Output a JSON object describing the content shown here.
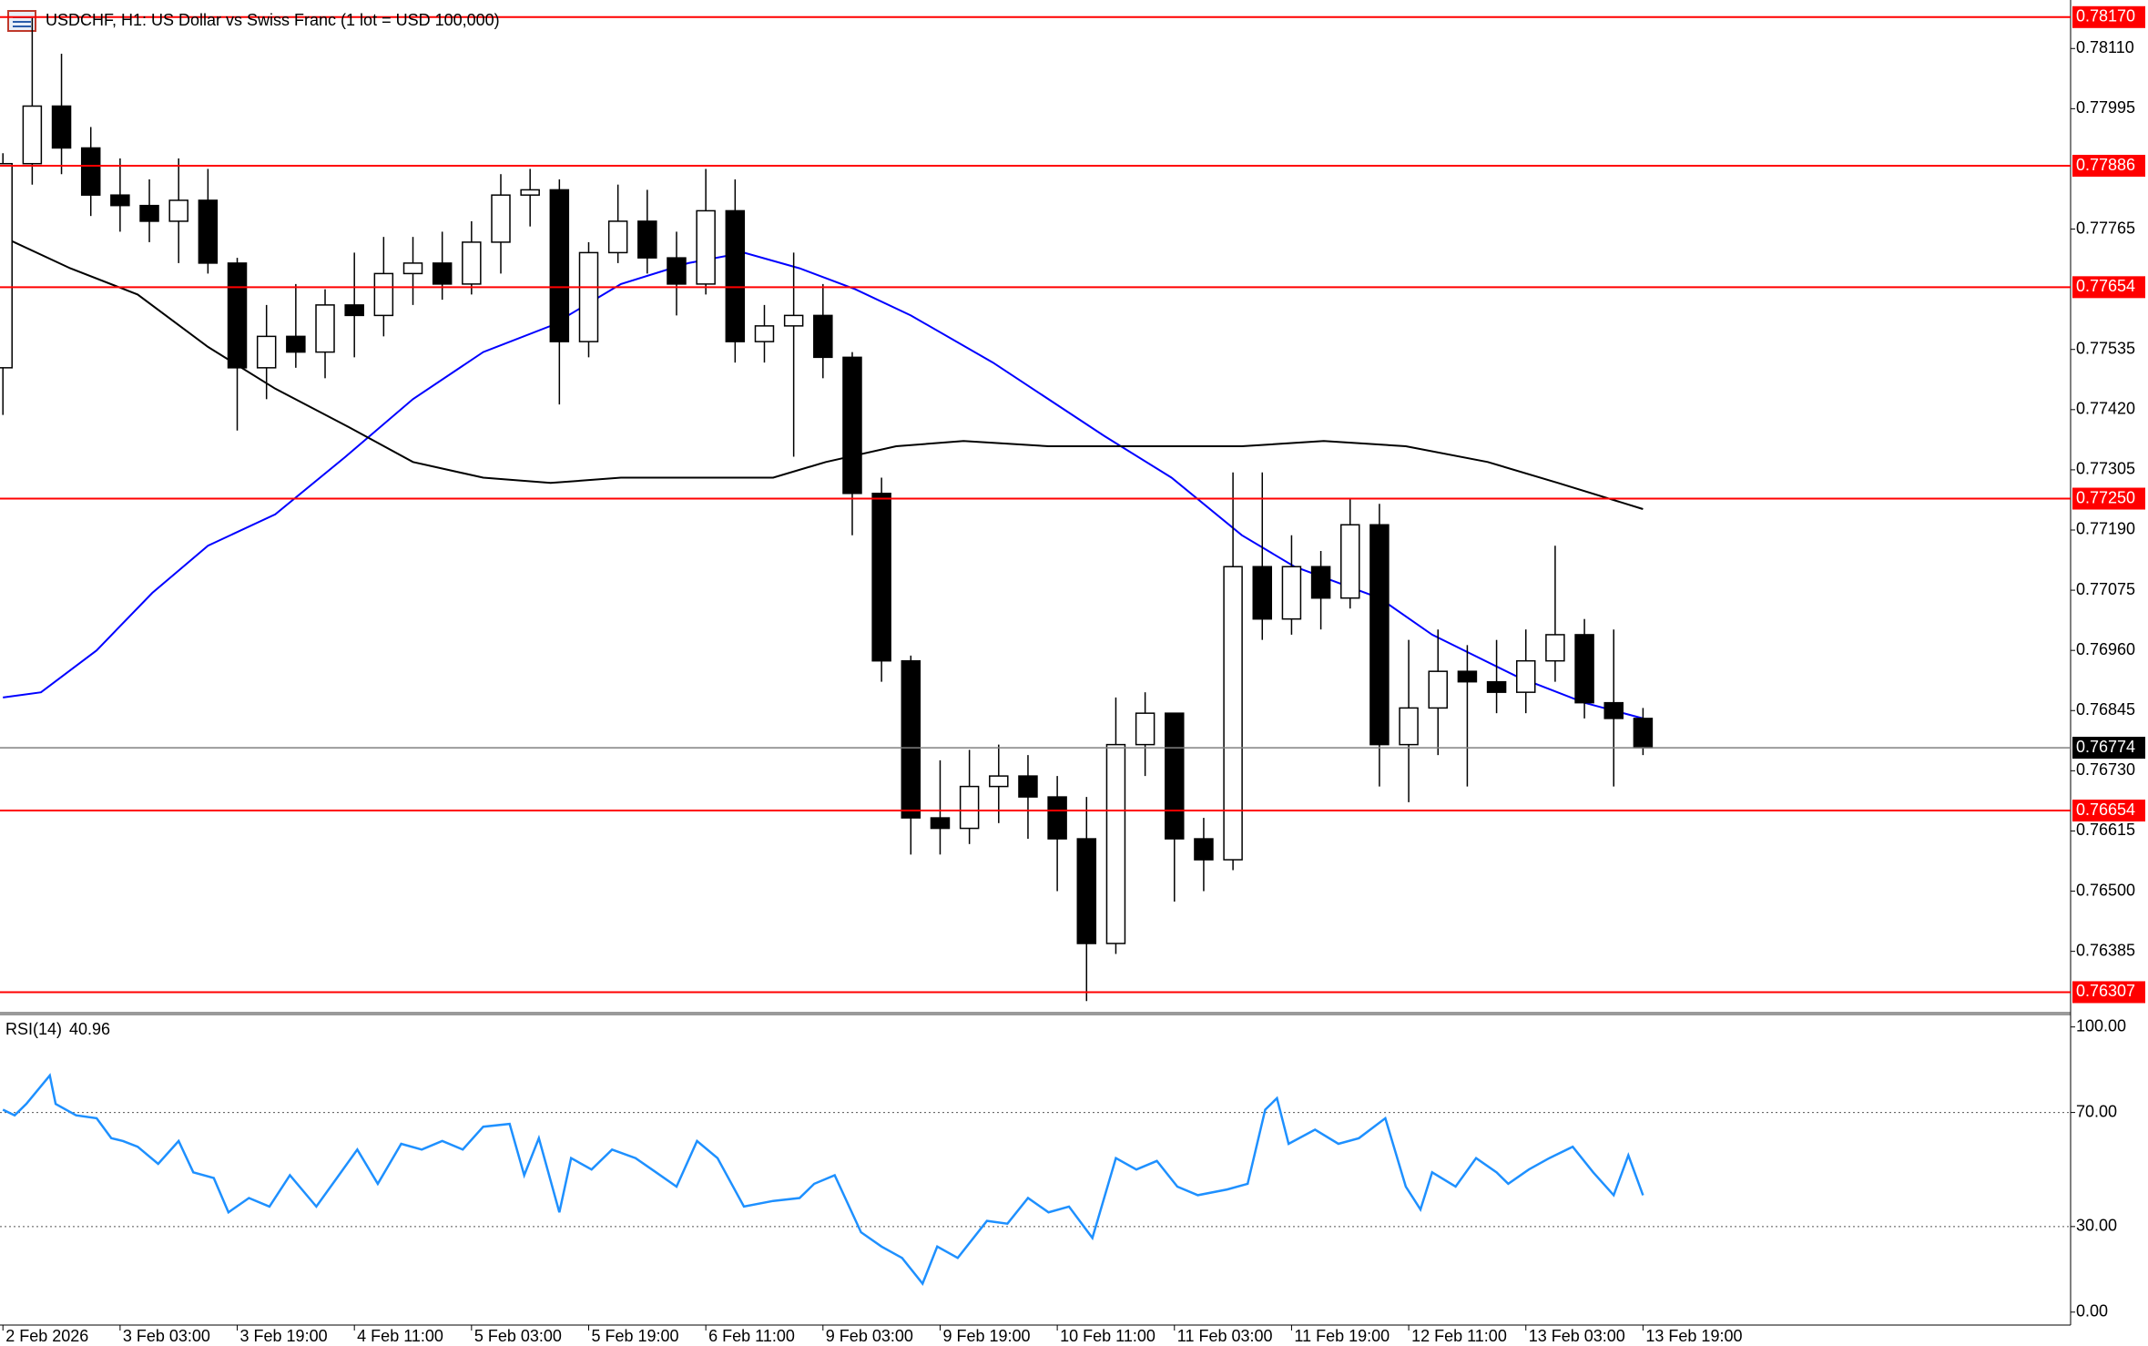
{
  "chart_data": [
    {
      "type": "candlestick",
      "title": "USDCHF, H1:  US Dollar vs Swiss Franc (1 lot = USD 100,000)",
      "candles": {
        "open": [
          0.775,
          0.7789,
          0.78,
          0.7792,
          0.7783,
          0.7781,
          0.7778,
          0.7782,
          0.777,
          0.775,
          0.7756,
          0.7753,
          0.7762,
          0.776,
          0.7768,
          0.777,
          0.7766,
          0.7774,
          0.7783,
          0.7784,
          0.7755,
          0.7772,
          0.7778,
          0.7771,
          0.7766,
          0.778,
          0.7755,
          0.7758,
          0.776,
          0.7752,
          0.7726,
          0.7694,
          0.7664,
          0.7662,
          0.767,
          0.7672,
          0.7668,
          0.766,
          0.764,
          0.7678,
          0.7684,
          0.766,
          0.7656,
          0.7712,
          0.7702,
          0.7712,
          0.7706,
          0.772,
          0.7678,
          0.7685,
          0.7692,
          0.769,
          0.7688,
          0.7694,
          0.7699,
          0.7686,
          0.7683
        ],
        "high": [
          0.7791,
          0.7817,
          0.781,
          0.7796,
          0.779,
          0.7786,
          0.779,
          0.7788,
          0.7771,
          0.7762,
          0.7766,
          0.7765,
          0.7772,
          0.7775,
          0.7775,
          0.7776,
          0.7778,
          0.7787,
          0.7788,
          0.7786,
          0.7774,
          0.7785,
          0.7784,
          0.7776,
          0.7788,
          0.7786,
          0.7762,
          0.7772,
          0.7766,
          0.7753,
          0.7729,
          0.7695,
          0.7675,
          0.7677,
          0.7678,
          0.7676,
          0.7672,
          0.7668,
          0.7687,
          0.7688,
          0.7684,
          0.7664,
          0.773,
          0.773,
          0.7718,
          0.7715,
          0.7725,
          0.7724,
          0.7698,
          0.77,
          0.7697,
          0.7698,
          0.77,
          0.7716,
          0.7702,
          0.77,
          0.7685
        ],
        "low": [
          0.7741,
          0.7785,
          0.7787,
          0.7779,
          0.7776,
          0.7774,
          0.777,
          0.7768,
          0.7738,
          0.7744,
          0.775,
          0.7748,
          0.7752,
          0.7756,
          0.7762,
          0.7763,
          0.7764,
          0.7768,
          0.7777,
          0.7743,
          0.7752,
          0.777,
          0.7768,
          0.776,
          0.7764,
          0.7751,
          0.7751,
          0.7733,
          0.7748,
          0.7718,
          0.769,
          0.7657,
          0.7657,
          0.7659,
          0.7663,
          0.766,
          0.765,
          0.7629,
          0.7638,
          0.7672,
          0.7648,
          0.765,
          0.7654,
          0.7698,
          0.7699,
          0.77,
          0.7704,
          0.767,
          0.7667,
          0.7676,
          0.767,
          0.7684,
          0.7684,
          0.769,
          0.7683,
          0.767,
          0.7676
        ],
        "close": [
          0.7789,
          0.78,
          0.7792,
          0.7783,
          0.7781,
          0.7778,
          0.7782,
          0.777,
          0.775,
          0.7756,
          0.7753,
          0.7762,
          0.776,
          0.7768,
          0.777,
          0.7766,
          0.7774,
          0.7783,
          0.7784,
          0.7755,
          0.7772,
          0.7778,
          0.7771,
          0.7766,
          0.778,
          0.7755,
          0.7758,
          0.776,
          0.7752,
          0.7726,
          0.7694,
          0.7664,
          0.7662,
          0.767,
          0.7672,
          0.7668,
          0.766,
          0.764,
          0.7678,
          0.7684,
          0.766,
          0.7656,
          0.7712,
          0.7702,
          0.7712,
          0.7706,
          0.772,
          0.7678,
          0.7685,
          0.7692,
          0.769,
          0.7688,
          0.7694,
          0.7699,
          0.7686,
          0.7683,
          0.76774
        ]
      },
      "colors": {
        "up": "#ffffff",
        "down": "#000000",
        "outline": "#000000"
      },
      "moving_averages": [
        {
          "color": "#0000ff",
          "x": [
            0,
            1.3,
            3.2,
            5.1,
            7.0,
            9.3,
            11.7,
            14.0,
            16.4,
            18.7,
            21.1,
            23.4,
            25.3,
            27.2,
            29.1,
            31.0,
            33.8,
            37.6,
            39.9,
            42.3,
            44.1,
            47.0,
            48.8,
            51.7,
            54.0,
            56.0
          ],
          "values": [
            0.7687,
            0.7688,
            0.7696,
            0.7707,
            0.7716,
            0.7722,
            0.7733,
            0.7744,
            0.7753,
            0.7758,
            0.7766,
            0.777,
            0.7772,
            0.7769,
            0.7765,
            0.776,
            0.7751,
            0.7737,
            0.7729,
            0.7718,
            0.7712,
            0.7706,
            0.7699,
            0.7691,
            0.7686,
            0.7683
          ]
        },
        {
          "color": "#000000",
          "x": [
            0,
            2.3,
            4.6,
            7.0,
            9.3,
            11.7,
            14.0,
            16.4,
            18.7,
            21.1,
            23.4,
            26.3,
            28.1,
            30.5,
            32.8,
            35.7,
            39.9,
            42.3,
            45.1,
            47.9,
            50.7,
            53.1,
            56.0
          ],
          "values": [
            0.7775,
            0.7769,
            0.7764,
            0.7754,
            0.7746,
            0.7739,
            0.7732,
            0.7729,
            0.7728,
            0.7729,
            0.7729,
            0.7729,
            0.7732,
            0.7735,
            0.7736,
            0.7735,
            0.7735,
            0.7735,
            0.7736,
            0.7735,
            0.7732,
            0.7728,
            0.7723
          ]
        }
      ],
      "levels": [
        {
          "value": 0.7817,
          "label": "0.78170"
        },
        0.77886,
        0.77654,
        {
          "value": 0.7725,
          "label": "0.77250"
        },
        0.76654,
        0.76307
      ],
      "level_color": "#ff0000",
      "current_price": 0.76774,
      "current_color": "#808080",
      "xlim": [
        -0.1,
        70.6
      ],
      "ylim": [
        0.76273,
        0.78194
      ],
      "yticks": [
        {
          "value": 0.7811,
          "label": "0.78110"
        },
        0.77995,
        0.77765,
        0.77535,
        {
          "value": 0.7742,
          "label": "0.77420"
        },
        0.77305,
        {
          "value": 0.7719,
          "label": "0.77190"
        },
        0.77075,
        {
          "value": 0.7696,
          "label": "0.76960"
        },
        0.76845,
        {
          "value": 0.7673,
          "label": "0.76730"
        },
        0.76615,
        {
          "value": 0.765,
          "label": "0.76500"
        },
        0.76385
      ]
    },
    {
      "type": "line",
      "name": "RSI(14)",
      "current": 40.96,
      "color": "#1e90ff",
      "x": [
        0,
        0.4,
        0.8,
        1.6,
        1.8,
        2.5,
        3.2,
        3.7,
        4.1,
        4.6,
        5.3,
        6.0,
        6.5,
        7.2,
        7.7,
        8.4,
        9.1,
        9.8,
        10.7,
        11.4,
        12.1,
        12.8,
        13.6,
        14.3,
        15.0,
        15.7,
        16.4,
        17.3,
        17.8,
        18.3,
        19.0,
        19.4,
        20.1,
        20.8,
        21.6,
        22.3,
        23.0,
        23.7,
        24.4,
        25.3,
        26.3,
        27.2,
        27.7,
        28.4,
        29.3,
        30.0,
        30.7,
        31.4,
        31.9,
        32.6,
        33.6,
        34.3,
        35.0,
        35.7,
        36.4,
        37.2,
        38.0,
        38.7,
        39.4,
        40.1,
        40.8,
        41.8,
        42.5,
        43.1,
        43.5,
        43.9,
        44.8,
        45.6,
        46.3,
        47.2,
        47.9,
        48.4,
        48.8,
        49.6,
        50.3,
        51.0,
        51.4,
        52.1,
        52.8,
        53.6,
        54.3,
        55.0,
        55.5,
        56.0
      ],
      "values": [
        71,
        69,
        73,
        83,
        73,
        69,
        68,
        61,
        60,
        58,
        52,
        60,
        49,
        47,
        35,
        40,
        37,
        48,
        37,
        47,
        57,
        45,
        59,
        57,
        60,
        57,
        65,
        66,
        48,
        61,
        35,
        54,
        50,
        57,
        54,
        49,
        44,
        60,
        54,
        37,
        39,
        40,
        45,
        48,
        28,
        23,
        19,
        10,
        23,
        19,
        32,
        31,
        40,
        35,
        37,
        26,
        54,
        50,
        53,
        44,
        41,
        43,
        45,
        71,
        75,
        59,
        64,
        59,
        61,
        68,
        44,
        36,
        49,
        44,
        54,
        49,
        45,
        50,
        54,
        58,
        49,
        41,
        55,
        40.96
      ],
      "levels": [
        70,
        30
      ],
      "xlim": [
        -0.1,
        70.6
      ],
      "ylim": [
        -3.9,
        103.4
      ],
      "yticks": [
        {
          "value": 100,
          "label": "100.00"
        },
        {
          "value": 70,
          "label": "70.00"
        },
        {
          "value": 30,
          "label": "30.00"
        },
        {
          "value": 0,
          "label": "0.00"
        }
      ],
      "xticks": [
        {
          "value": 0,
          "label": "2 Feb 2026"
        },
        {
          "value": 4,
          "label": "3 Feb 03:00"
        },
        {
          "value": 8,
          "label": "3 Feb 19:00"
        },
        {
          "value": 12,
          "label": "4 Feb 11:00"
        },
        {
          "value": 16,
          "label": "5 Feb 03:00"
        },
        {
          "value": 20,
          "label": "5 Feb 19:00"
        },
        {
          "value": 24,
          "label": "6 Feb 11:00"
        },
        {
          "value": 28,
          "label": "9 Feb 03:00"
        },
        {
          "value": 32,
          "label": "9 Feb 19:00"
        },
        {
          "value": 36,
          "label": "10 Feb 11:00"
        },
        {
          "value": 40,
          "label": "11 Feb 03:00"
        },
        {
          "value": 44,
          "label": "11 Feb 19:00"
        },
        {
          "value": 48,
          "label": "12 Feb 11:00"
        },
        {
          "value": 52,
          "label": "13 Feb 03:00"
        },
        {
          "value": 56,
          "label": "13 Feb 19:00"
        }
      ]
    }
  ]
}
